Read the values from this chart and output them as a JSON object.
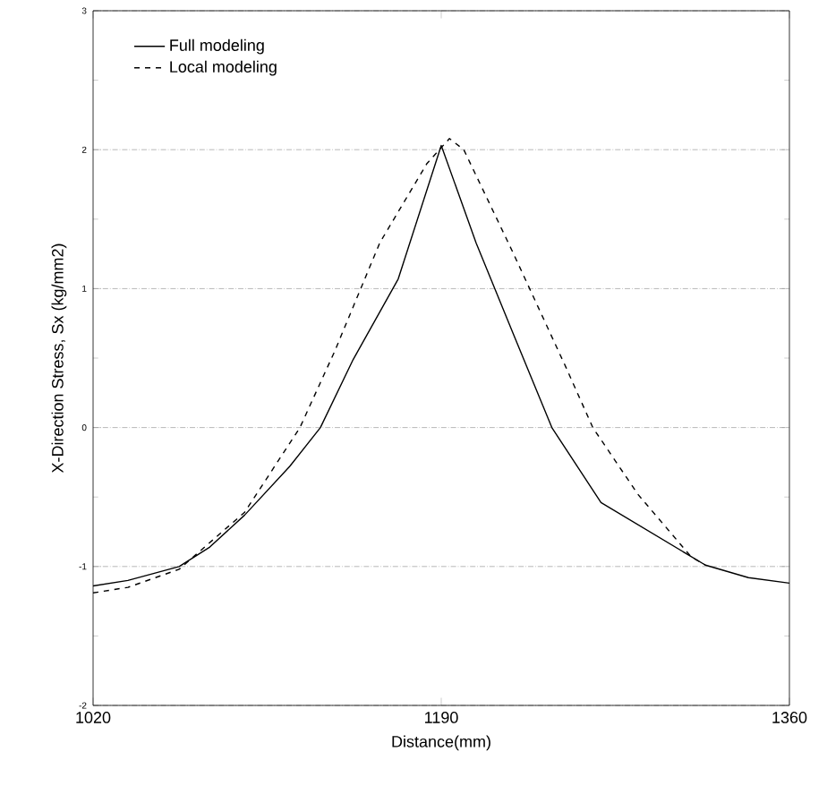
{
  "chart_data": {
    "type": "line",
    "xlabel": "Distance(mm)",
    "ylabel": "X-Direction Stress, Sx (kg/mm2)",
    "xlim": [
      1020,
      1360
    ],
    "xticks": [
      1020,
      1190,
      1360
    ],
    "ylim": [
      -2,
      3
    ],
    "yticks": [
      -2,
      -1,
      0,
      1,
      2,
      3
    ],
    "grid": "y",
    "legend": "top left",
    "series": [
      {
        "name": "Full modeling",
        "color": "#000000",
        "line_style": "solid",
        "x": [
          1020,
          1037,
          1062,
          1077,
          1094,
          1116,
          1131,
          1147,
          1169,
          1190,
          1207,
          1225,
          1244,
          1268,
          1319,
          1340,
          1360
        ],
        "values": [
          -1.14,
          -1.1,
          -1.0,
          -0.86,
          -0.63,
          -0.28,
          0.0,
          0.49,
          1.07,
          2.03,
          1.33,
          0.68,
          0.0,
          -0.54,
          -0.99,
          -1.08,
          -1.12
        ]
      },
      {
        "name": "Local modeling",
        "color": "#000000",
        "line_style": "dashed",
        "x": [
          1020,
          1037,
          1062,
          1094,
          1121,
          1138,
          1160,
          1183,
          1194,
          1201,
          1225,
          1251,
          1264,
          1286,
          1312,
          1319
        ],
        "values": [
          -1.19,
          -1.15,
          -1.02,
          -0.61,
          0.0,
          0.55,
          1.33,
          1.9,
          2.08,
          2.0,
          1.26,
          0.43,
          0.0,
          -0.48,
          -0.93,
          -0.99
        ]
      }
    ]
  }
}
